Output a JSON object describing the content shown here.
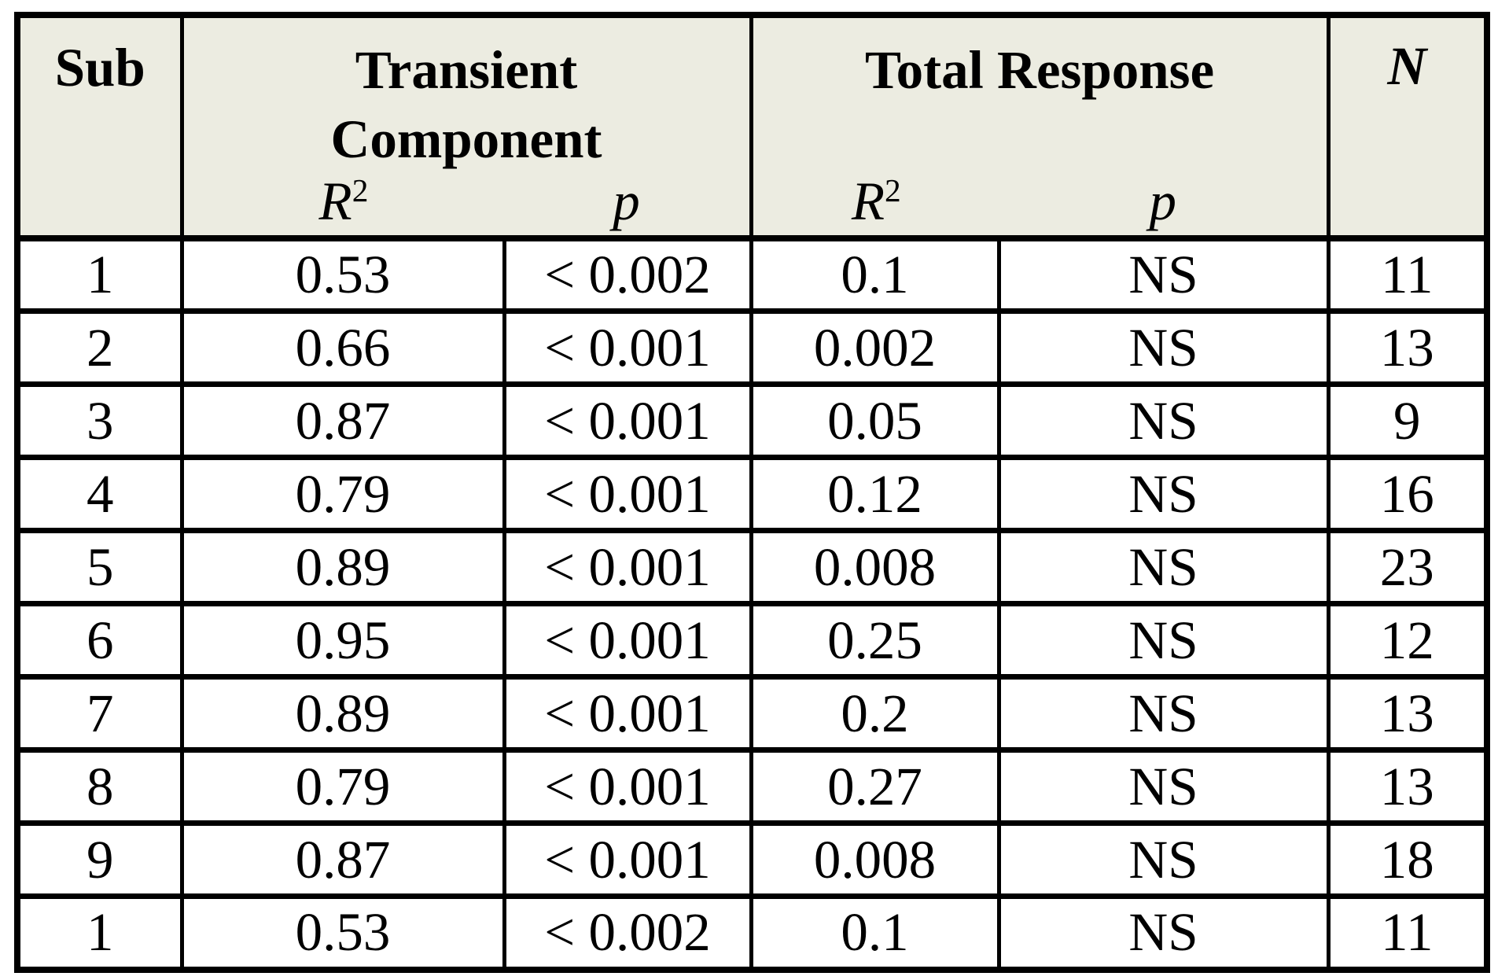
{
  "colors": {
    "header_bg": "#ECECE1",
    "border": "#000000",
    "cell_bg": "#FFFFFF",
    "text": "#000000"
  },
  "table": {
    "header": {
      "sub": "Sub",
      "transient_line1": "Transient",
      "transient_line2": "Component",
      "total": "Total Response",
      "n": "N",
      "r2_base": "R",
      "r2_sup": "2",
      "p": "p"
    },
    "rows": [
      {
        "sub": "1",
        "tc_r2": "0.53",
        "tc_p": "< 0.002",
        "tr_r2": "0.1",
        "tr_p": "NS",
        "n": "11"
      },
      {
        "sub": "2",
        "tc_r2": "0.66",
        "tc_p": "< 0.001",
        "tr_r2": "0.002",
        "tr_p": "NS",
        "n": "13"
      },
      {
        "sub": "3",
        "tc_r2": "0.87",
        "tc_p": "< 0.001",
        "tr_r2": "0.05",
        "tr_p": "NS",
        "n": "9"
      },
      {
        "sub": "4",
        "tc_r2": "0.79",
        "tc_p": "< 0.001",
        "tr_r2": "0.12",
        "tr_p": "NS",
        "n": "16"
      },
      {
        "sub": "5",
        "tc_r2": "0.89",
        "tc_p": "< 0.001",
        "tr_r2": "0.008",
        "tr_p": "NS",
        "n": "23"
      },
      {
        "sub": "6",
        "tc_r2": "0.95",
        "tc_p": "< 0.001",
        "tr_r2": "0.25",
        "tr_p": "NS",
        "n": "12"
      },
      {
        "sub": "7",
        "tc_r2": "0.89",
        "tc_p": "< 0.001",
        "tr_r2": "0.2",
        "tr_p": "NS",
        "n": "13"
      },
      {
        "sub": "8",
        "tc_r2": "0.79",
        "tc_p": "< 0.001",
        "tr_r2": "0.27",
        "tr_p": "NS",
        "n": "13"
      },
      {
        "sub": "9",
        "tc_r2": "0.87",
        "tc_p": "< 0.001",
        "tr_r2": "0.008",
        "tr_p": "NS",
        "n": "18"
      },
      {
        "sub": "1",
        "tc_r2": "0.53",
        "tc_p": "< 0.002",
        "tr_r2": "0.1",
        "tr_p": "NS",
        "n": "11"
      }
    ]
  }
}
